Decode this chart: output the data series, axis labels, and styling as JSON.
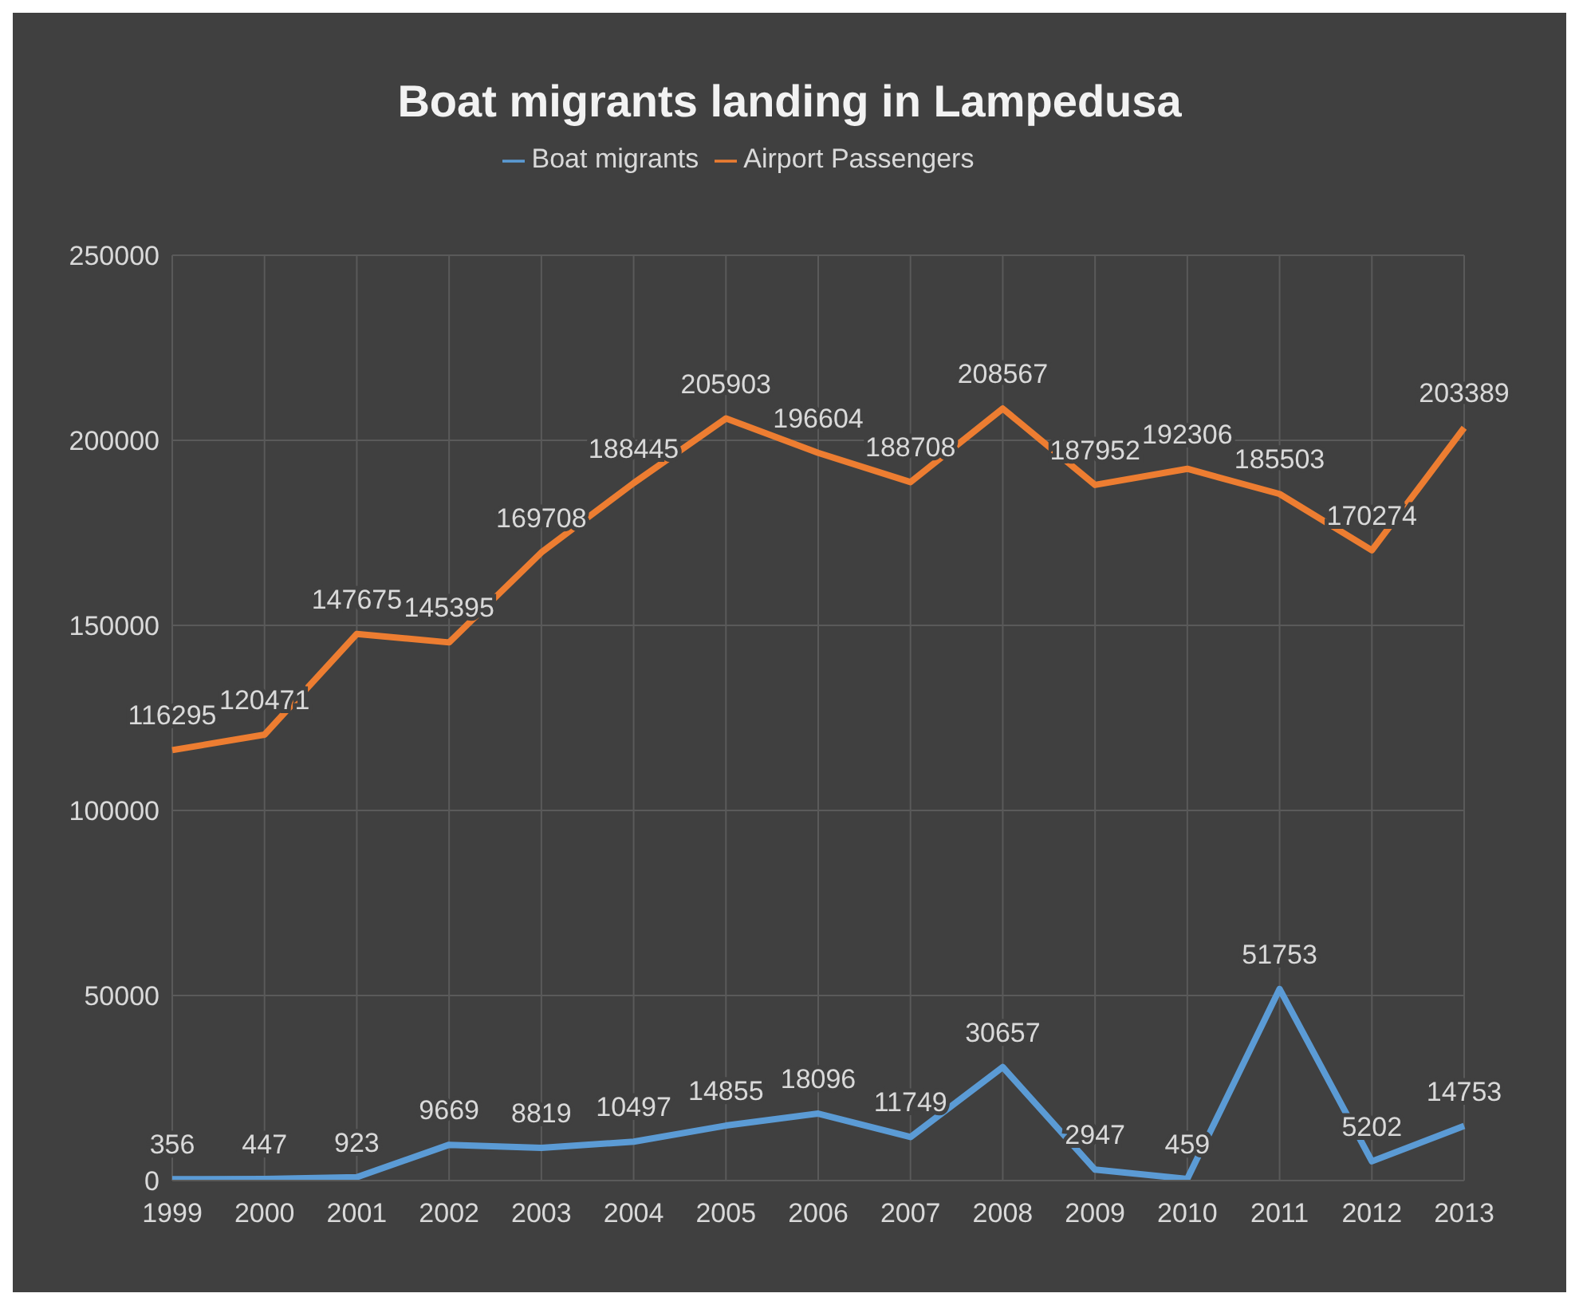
{
  "chart_data": {
    "type": "line",
    "title": "Boat migrants landing in Lampedusa",
    "categories": [
      "1999",
      "2000",
      "2001",
      "2002",
      "2003",
      "2004",
      "2005",
      "2006",
      "2007",
      "2008",
      "2009",
      "2010",
      "2011",
      "2012",
      "2013"
    ],
    "series": [
      {
        "name": "Boat migrants",
        "color": "#5b9bd5",
        "values": [
          356,
          447,
          923,
          9669,
          8819,
          10497,
          14855,
          18096,
          11749,
          30657,
          2947,
          459,
          51753,
          5202,
          14753
        ]
      },
      {
        "name": "Airport Passengers",
        "color": "#ed7d31",
        "values": [
          116295,
          120471,
          147675,
          145395,
          169708,
          188445,
          205903,
          196604,
          188708,
          208567,
          187952,
          192306,
          185503,
          170274,
          203389
        ]
      }
    ],
    "ylim": [
      0,
      250000
    ],
    "yticks": [
      0,
      50000,
      100000,
      150000,
      200000,
      250000
    ],
    "grid": true,
    "legend": "top",
    "data_labels": true,
    "marker": "none",
    "line_style": "solid"
  }
}
